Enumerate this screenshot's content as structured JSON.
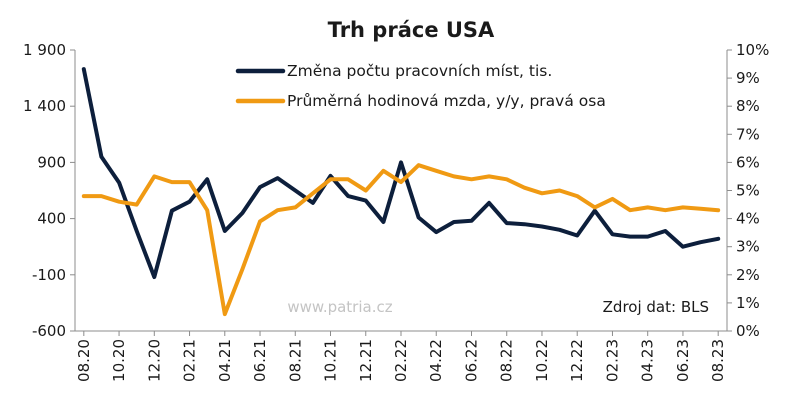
{
  "chart_data": {
    "type": "line",
    "title": "Trh práce USA",
    "xlabel": "",
    "ylabel": "",
    "x_tick_labels": [
      "08.20",
      "10.20",
      "12.20",
      "02.21",
      "04.21",
      "06.21",
      "08.21",
      "10.21",
      "12.21",
      "02.22",
      "04.22",
      "06.22",
      "08.22",
      "10.22",
      "12.22",
      "02.23",
      "04.23",
      "06.23",
      "08.23"
    ],
    "y_left": {
      "min": -600,
      "max": 1900,
      "ticks": [
        "1 900",
        "1 400",
        "900",
        "400",
        "-100",
        "-600"
      ]
    },
    "y_right": {
      "min": 0,
      "max": 10,
      "ticks": [
        "10%",
        "9%",
        "8%",
        "7%",
        "6%",
        "5%",
        "4%",
        "3%",
        "2%",
        "1%",
        "0%"
      ]
    },
    "grid": false,
    "legend_position": "top-center",
    "x": [
      "08.20",
      "09.20",
      "10.20",
      "11.20",
      "12.20",
      "01.21",
      "02.21",
      "03.21",
      "04.21",
      "05.21",
      "06.21",
      "07.21",
      "08.21",
      "09.21",
      "10.21",
      "11.21",
      "12.21",
      "01.22",
      "02.22",
      "03.22",
      "04.22",
      "05.22",
      "06.22",
      "07.22",
      "08.22",
      "09.22",
      "10.22",
      "11.22",
      "12.22",
      "01.23",
      "02.23",
      "03.23",
      "04.23",
      "05.23",
      "06.23",
      "07.23",
      "08.23"
    ],
    "series": [
      {
        "name": "Změna počtu pracovních míst, tis.",
        "axis": "left",
        "color": "#0d1f3c",
        "values": [
          1730,
          950,
          720,
          290,
          -120,
          470,
          550,
          750,
          290,
          450,
          680,
          760,
          650,
          540,
          780,
          600,
          560,
          370,
          900,
          410,
          280,
          370,
          380,
          540,
          360,
          350,
          330,
          300,
          250,
          470,
          260,
          240,
          240,
          290,
          150,
          190,
          220
        ]
      },
      {
        "name": "Průměrná hodinová mzda, y/y, pravá osa",
        "axis": "right",
        "color": "#f09a13",
        "values": [
          4.8,
          4.8,
          4.6,
          4.5,
          5.5,
          5.3,
          5.3,
          4.3,
          0.6,
          2.2,
          3.9,
          4.3,
          4.4,
          4.9,
          5.4,
          5.4,
          5.0,
          5.7,
          5.3,
          5.9,
          5.7,
          5.5,
          5.4,
          5.5,
          5.4,
          5.1,
          4.9,
          5.0,
          4.8,
          4.4,
          4.7,
          4.3,
          4.4,
          4.3,
          4.4,
          4.35,
          4.3
        ]
      }
    ]
  },
  "watermark": "www.patria.cz",
  "source_note": "Zdroj dat: BLS"
}
